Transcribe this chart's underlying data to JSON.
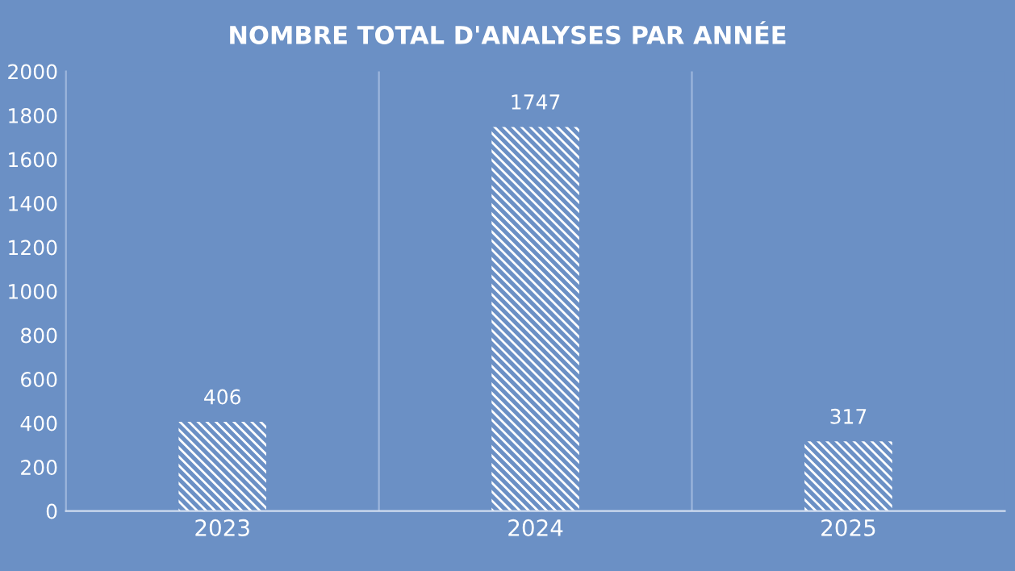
{
  "chart_data": {
    "type": "bar",
    "title": "NOMBRE TOTAL D'ANALYSES PAR ANNÉE",
    "categories": [
      "2023",
      "2024",
      "2025"
    ],
    "series": [
      {
        "color": "#ffffff",
        "values": [
          406,
          1747,
          317
        ]
      }
    ],
    "ylim": [
      0,
      2000
    ],
    "yticks": [
      0,
      200,
      400,
      600,
      800,
      1000,
      1200,
      1400,
      1600,
      1800,
      2000
    ],
    "grid": "x",
    "data_labels": true
  }
}
